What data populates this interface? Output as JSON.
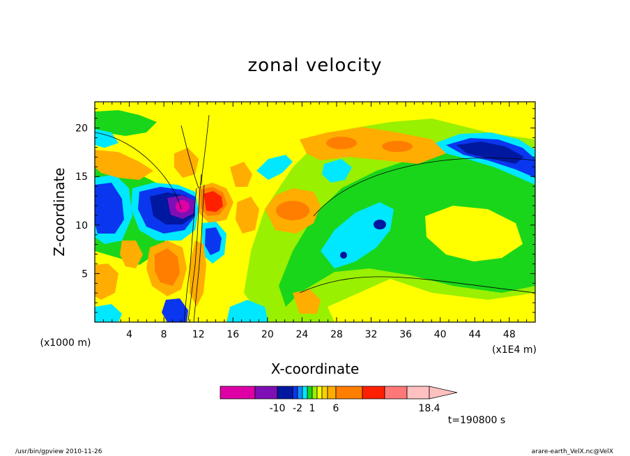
{
  "chart_data": {
    "type": "heatmap",
    "title": "zonal velocity",
    "xlabel": "X-coordinate",
    "ylabel": "Z-coordinate",
    "x_unit_label": "(x1E4 m)",
    "y_unit_label": "(x1000 m)",
    "x_ticks": [
      4,
      8,
      12,
      16,
      20,
      24,
      28,
      32,
      36,
      40,
      44,
      48
    ],
    "y_ticks": [
      5,
      10,
      15,
      20
    ],
    "xlim": [
      0,
      51
    ],
    "ylim": [
      0,
      22.7
    ],
    "colorbar": {
      "colors": [
        "#de00a6",
        "#7d0fb5",
        "#0018a0",
        "#0a36ef",
        "#0c8eff",
        "#00e8ff",
        "#1ad61a",
        "#99f000",
        "#ffff00",
        "#f8d200",
        "#ffad00",
        "#ff7e00",
        "#ff2000",
        "#ff7878",
        "#ffc0c0"
      ],
      "tick_labels": [
        "-10",
        "-2",
        "1",
        "6",
        "18.4"
      ],
      "tick_values": [
        -10,
        -2,
        1,
        6,
        18.4
      ]
    },
    "time_label": "t=190800 s",
    "features": [
      {
        "name": "upper-left band",
        "value": 2,
        "x": [
          0,
          8
        ],
        "z": [
          15,
          17
        ]
      },
      {
        "name": "negative core",
        "value": -10,
        "x": [
          8,
          12
        ],
        "z": [
          11,
          15
        ]
      },
      {
        "name": "positive core",
        "value": 8,
        "x": [
          12,
          15
        ],
        "z": [
          11,
          14
        ]
      },
      {
        "name": "mid orange patch",
        "value": 3,
        "x": [
          19,
          24
        ],
        "z": [
          10,
          13
        ]
      },
      {
        "name": "upper-right negative",
        "value": -6,
        "x": [
          41,
          50
        ],
        "z": [
          16,
          19
        ]
      },
      {
        "name": "mid-right cyan",
        "value": -2,
        "x": [
          26,
          34
        ],
        "z": [
          6,
          10
        ]
      }
    ]
  },
  "footer": {
    "left": "/usr/bin/gpview   2010-11-26",
    "right": "arare-earth_VelX.nc@VelX"
  }
}
